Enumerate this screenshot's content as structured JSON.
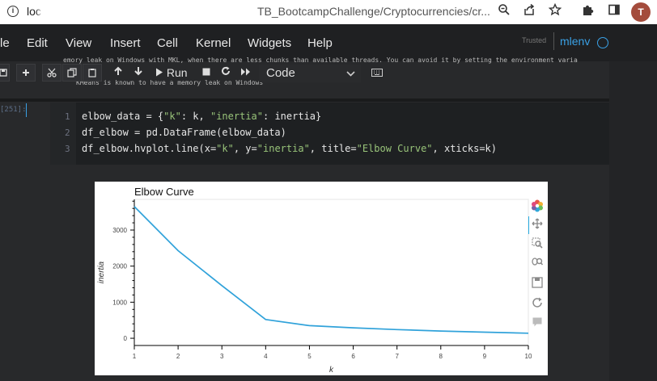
{
  "browser": {
    "url_start": "loc",
    "url_end": "TB_BootcampChallenge/Cryptocurrencies/cr...",
    "avatar_letter": "T"
  },
  "menu": {
    "items": [
      "le",
      "Edit",
      "View",
      "Insert",
      "Cell",
      "Kernel",
      "Widgets",
      "Help"
    ],
    "trusted": "Trusted",
    "kernel": "mlenv"
  },
  "toolbar": {
    "run_label": "Run",
    "cell_type": "Code"
  },
  "warning": {
    "line1": "emory leak on Windows with MKL, when there are less chunks than available threads. You can avoid it by setting the environment varia",
    "line2": "KMeans is known to have a memory leak on Windows"
  },
  "cell": {
    "prompt": "[251]:",
    "line_numbers": [
      "1",
      "2",
      "3"
    ]
  },
  "chart_data": {
    "type": "line",
    "title": "Elbow Curve",
    "xlabel": "k",
    "ylabel": "inertia",
    "x": [
      1,
      2,
      3,
      4,
      5,
      6,
      7,
      8,
      9,
      10
    ],
    "y": [
      3650,
      2430,
      1460,
      520,
      350,
      290,
      240,
      200,
      170,
      140
    ],
    "xticks": [
      "1",
      "2",
      "3",
      "4",
      "5",
      "6",
      "7",
      "8",
      "9",
      "10"
    ],
    "yticks": [
      0,
      1000,
      2000,
      3000
    ],
    "xlim": [
      1,
      10
    ],
    "ylim": [
      -200,
      3850
    ],
    "line_color": "#30a2da",
    "grid": false
  },
  "colors": {
    "accent": "#3aa1e6",
    "notebook_bg": "#28292b"
  },
  "plot_tools": [
    "bokeh-logo-icon",
    "pan-icon",
    "box-zoom-icon",
    "wheel-zoom-icon",
    "save-icon",
    "reset-icon",
    "hover-icon"
  ]
}
